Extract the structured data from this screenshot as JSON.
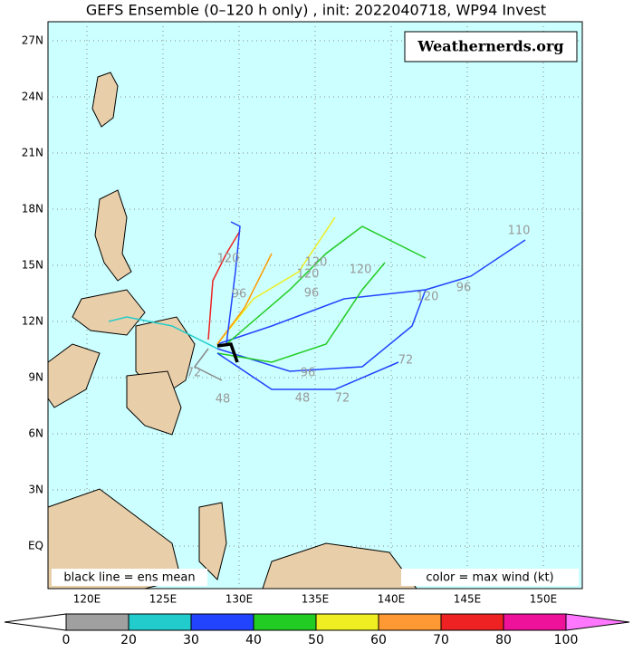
{
  "title": "GEFS Ensemble (0–120 h only) , init: 2022040718, WP94 Invest",
  "watermark": "Weathernerds.org",
  "legend_left": "black line = ens mean",
  "legend_right": "color = max wind (kt)",
  "lat_labels": [
    "27N",
    "24N",
    "21N",
    "18N",
    "15N",
    "12N",
    "9N",
    "6N",
    "3N",
    "EQ"
  ],
  "lon_labels": [
    "120E",
    "125E",
    "130E",
    "135E",
    "140E",
    "145E",
    "150E"
  ],
  "colorbar_labels": [
    "0",
    "20",
    "30",
    "40",
    "50",
    "60",
    "70",
    "80",
    "100"
  ],
  "track_labels": [
    "120",
    "110",
    "96",
    "120",
    "120",
    "120",
    "120",
    "96",
    "96",
    "72",
    "72",
    "96",
    "48",
    "48",
    "72"
  ]
}
